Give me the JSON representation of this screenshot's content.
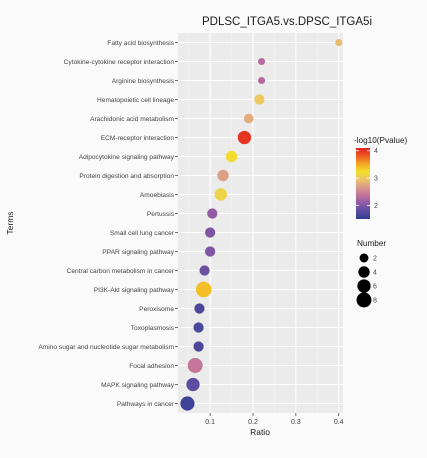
{
  "chart_data": {
    "type": "scatter",
    "title": "PDLSC_ITGA5.vs.DPSC_ITGA5i",
    "xlabel": "Ratio",
    "ylabel": "Terms",
    "xlim": [
      0.025,
      0.41
    ],
    "x_ticks": [
      "0.1",
      "0.2",
      "0.3",
      "0.4"
    ],
    "x_tick_values": [
      0.1,
      0.2,
      0.3,
      0.4
    ],
    "grid": true,
    "legend_position": "right",
    "color_legend": {
      "title": "-log10(Pvalue)",
      "ticks": [
        "2",
        "3",
        "4"
      ],
      "tick_values": [
        2,
        3,
        4
      ],
      "range": [
        1.5,
        4.1
      ],
      "colors": [
        "#2e3f93",
        "#5b4ba0",
        "#8e5aa5",
        "#c0719c",
        "#d99a8c",
        "#eac26b",
        "#f2e02a",
        "#f5a524",
        "#ee5a22",
        "#e0201f"
      ]
    },
    "size_legend": {
      "title": "Number",
      "values": [
        2,
        4,
        6,
        8
      ]
    },
    "points": [
      {
        "term": "Fatty acid biosynthesis",
        "ratio": 0.4,
        "number": 1,
        "neg_log10_p": 2.9
      },
      {
        "term": "Cytokine-cytokine receptor interaction",
        "ratio": 0.22,
        "number": 1,
        "neg_log10_p": 2.3
      },
      {
        "term": "Arginine biosynthesis",
        "ratio": 0.22,
        "number": 1,
        "neg_log10_p": 2.3
      },
      {
        "term": "Hematopoietic cell lineage",
        "ratio": 0.215,
        "number": 3,
        "neg_log10_p": 3.0
      },
      {
        "term": "Arachidonic acid metabolism",
        "ratio": 0.19,
        "number": 2.5,
        "neg_log10_p": 2.8
      },
      {
        "term": "ECM-receptor interaction",
        "ratio": 0.18,
        "number": 6,
        "neg_log10_p": 4.0
      },
      {
        "term": "Adipocytokine signaling pathway",
        "ratio": 0.15,
        "number": 4,
        "neg_log10_p": 3.2
      },
      {
        "term": "Protein digestion and absorption",
        "ratio": 0.13,
        "number": 4,
        "neg_log10_p": 2.7
      },
      {
        "term": "Amoebiasis",
        "ratio": 0.125,
        "number": 5,
        "neg_log10_p": 3.1
      },
      {
        "term": "Pertussis",
        "ratio": 0.105,
        "number": 3,
        "neg_log10_p": 2.1
      },
      {
        "term": "Small cell lung cancer",
        "ratio": 0.1,
        "number": 3,
        "neg_log10_p": 2.0
      },
      {
        "term": "PPAR signaling pathway",
        "ratio": 0.1,
        "number": 3,
        "neg_log10_p": 2.0
      },
      {
        "term": "Central carbon metabolism in cancer",
        "ratio": 0.087,
        "number": 3,
        "neg_log10_p": 1.9
      },
      {
        "term": "PI3K-Akt signaling pathway",
        "ratio": 0.085,
        "number": 9,
        "neg_log10_p": 3.4
      },
      {
        "term": "Peroxisome",
        "ratio": 0.075,
        "number": 3,
        "neg_log10_p": 1.7
      },
      {
        "term": "Toxoplasmosis",
        "ratio": 0.073,
        "number": 3,
        "neg_log10_p": 1.7
      },
      {
        "term": "Amino sugar and nucleotide sugar metabolism",
        "ratio": 0.073,
        "number": 3,
        "neg_log10_p": 1.7
      },
      {
        "term": "Focal adhesion",
        "ratio": 0.065,
        "number": 8,
        "neg_log10_p": 2.4
      },
      {
        "term": "MAPK signaling pathway",
        "ratio": 0.06,
        "number": 6,
        "neg_log10_p": 1.8
      },
      {
        "term": "Pathways in cancer",
        "ratio": 0.047,
        "number": 7,
        "neg_log10_p": 1.6
      }
    ]
  }
}
